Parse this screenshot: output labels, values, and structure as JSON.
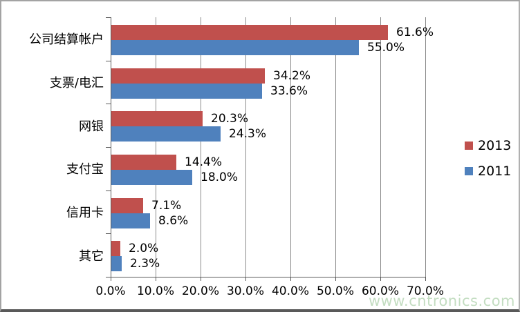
{
  "chart_data": {
    "type": "bar",
    "orientation": "horizontal",
    "categories": [
      "公司结算帐户",
      "支票/电汇",
      "网银",
      "支付宝",
      "信用卡",
      "其它"
    ],
    "series": [
      {
        "name": "2013",
        "color": "#C0504D",
        "values": [
          61.6,
          34.2,
          20.3,
          14.4,
          7.1,
          2.0
        ],
        "labels": [
          "61.6%",
          "34.2%",
          "20.3%",
          "14.4%",
          "7.1%",
          "2.0%"
        ]
      },
      {
        "name": "2011",
        "color": "#4F81BD",
        "values": [
          55.0,
          33.6,
          24.3,
          18.0,
          8.6,
          2.3
        ],
        "labels": [
          "55.0%",
          "33.6%",
          "24.3%",
          "18.0%",
          "8.6%",
          "2.3%"
        ]
      }
    ],
    "x_ticks": [
      "0.0%",
      "10.0%",
      "20.0%",
      "30.0%",
      "40.0%",
      "50.0%",
      "60.0%",
      "70.0%"
    ],
    "xlim": [
      0,
      70
    ],
    "grid": true,
    "legend_position": "right",
    "title": "",
    "xlabel": "",
    "ylabel": ""
  },
  "watermark": {
    "text": "www.cntronics.com",
    "color": "#c3ddc1"
  },
  "colors": {
    "series_2013": "#C0504D",
    "series_2011": "#4F81BD",
    "gridline": "#8a8a8a",
    "axis": "#595959",
    "text": "#000000",
    "background": "#ffffff",
    "frame_border": "#a3a3a3",
    "frame_border_bottom": "#595959"
  }
}
